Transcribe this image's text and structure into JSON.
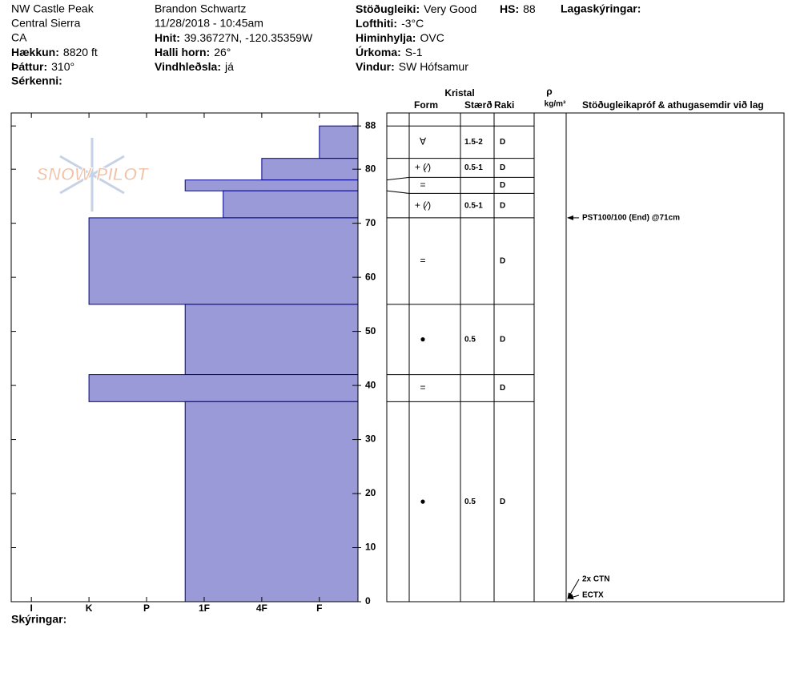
{
  "header": {
    "site": "NW Castle Peak",
    "range": "Central Sierra",
    "state": "CA",
    "elevation": {
      "label": "Hækkun:",
      "value": "8820 ft"
    },
    "aspect": {
      "label": "Þáttur:",
      "value": "310°"
    },
    "features_label": "Sérkenni:",
    "observer": "Brandon Schwartz",
    "datetime": "11/28/2018 - 10:45am",
    "coordinates": {
      "label": "Hnit:",
      "value": "39.36727N, -120.35359W"
    },
    "slope": {
      "label": "Halli horn:",
      "value": "26°"
    },
    "wind_loading": {
      "label": "Vindhleðsla:",
      "value": "já"
    },
    "stability": {
      "label": "Stöðugleiki:",
      "value": "Very Good"
    },
    "hs": {
      "label": "HS:",
      "value": "88"
    },
    "air_temp": {
      "label": "Lofthiti:",
      "value": "-3°C"
    },
    "sky": {
      "label": "Himinhylja:",
      "value": "OVC"
    },
    "precip": {
      "label": "Úrkoma:",
      "value": "S-1"
    },
    "wind": {
      "label": "Vindur:",
      "value": "SW Hófsamur"
    },
    "layer_notes_label": "Lagaskýringar:"
  },
  "logo": "SNOW PILOT",
  "footer": "Skýringar:",
  "chart_data": {
    "type": "snowprofile",
    "ylim": [
      0,
      90.4
    ],
    "yticks": [
      0,
      10,
      20,
      30,
      40,
      50,
      60,
      70,
      80,
      88
    ],
    "xlim": [
      6.35,
      0.33
    ],
    "xticks": [
      {
        "value": 6,
        "label": "I"
      },
      {
        "value": 5,
        "label": "K"
      },
      {
        "value": 4,
        "label": "P"
      },
      {
        "value": 3,
        "label": "1F"
      },
      {
        "value": 2,
        "label": "4F"
      },
      {
        "value": 1,
        "label": "F"
      }
    ],
    "color": "#9a9ad8",
    "edge_color": "#00008b",
    "layers": {
      "top": [
        88,
        82,
        78,
        76,
        71,
        55,
        42,
        37
      ],
      "bottom": [
        82,
        78,
        76,
        71,
        55,
        42,
        37,
        0
      ],
      "hardness": [
        1,
        2,
        3.33,
        2.67,
        5,
        3.33,
        5,
        3.33
      ],
      "form": [
        "∀",
        "+ (⁄)",
        "=",
        "+ (⁄)",
        "=",
        "●",
        "=",
        "●"
      ],
      "size": [
        "1.5-2",
        "0.5-1",
        null,
        "0.5-1",
        null,
        "0.5",
        null,
        "0.5"
      ],
      "moisture": [
        "D",
        "D",
        "D",
        "D",
        "D",
        "D",
        "D",
        "D"
      ]
    },
    "table_headers": {
      "crystal": "Kristal",
      "form": "Form",
      "size": "Stærð",
      "moisture": "Raki",
      "rho": "ρ",
      "density_unit": "kg/m³",
      "tests": "Stöðugleikapróf & athugasemdir við lag"
    },
    "stability_tests": [
      {
        "label": "PST100/100 (End) @71cm",
        "height": 71
      },
      {
        "label": "2x CTN",
        "height": 0
      },
      {
        "label": "ECTX",
        "height": 0
      }
    ]
  }
}
